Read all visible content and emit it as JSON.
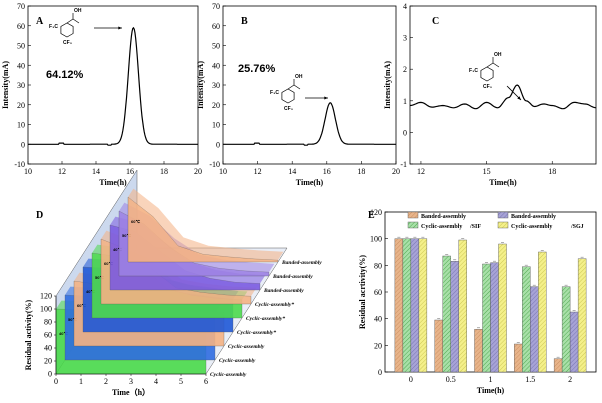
{
  "chart_data": [
    {
      "type": "line",
      "panel": "A",
      "xlabel": "Time(h)",
      "ylabel": "Intensity(mA)",
      "xlim": [
        10,
        20
      ],
      "ylim": [
        -10,
        70
      ],
      "xticks": [
        "10",
        "12",
        "14",
        "16",
        "18",
        "20"
      ],
      "yticks": [
        "-10",
        "0",
        "10",
        "20",
        "30",
        "40",
        "50",
        "60",
        "70"
      ],
      "annotation": "64.12%",
      "mol_labels": [
        "OH",
        "F₃C",
        "CF₃"
      ],
      "peak": {
        "center": 16.2,
        "height": 59,
        "width": 0.3
      },
      "baseline": 0
    },
    {
      "type": "line",
      "panel": "B",
      "xlabel": "Time(h)",
      "ylabel": "Intensity(mA)",
      "xlim": [
        10,
        20
      ],
      "ylim": [
        -10,
        70
      ],
      "xticks": [
        "10",
        "12",
        "14",
        "16",
        "18",
        "20"
      ],
      "yticks": [
        "-10",
        "0",
        "10",
        "20",
        "30",
        "40",
        "50",
        "60",
        "70"
      ],
      "annotation": "25.76%",
      "mol_labels": [
        "OH",
        "F₃C",
        "CF₃"
      ],
      "peak": {
        "center": 16.2,
        "height": 21,
        "width": 0.3
      },
      "baseline": 0
    },
    {
      "type": "line",
      "panel": "C",
      "xlabel": "Time(h)",
      "ylabel": "Intensity(mA)",
      "xlim": [
        11.5,
        20
      ],
      "ylim": [
        -1,
        4
      ],
      "xticks": [
        "12",
        "15",
        "18"
      ],
      "yticks": [
        "-1",
        "0",
        "1",
        "2",
        "3",
        "4"
      ],
      "mol_labels": [
        "OH",
        "F₃C",
        "CF₃"
      ],
      "x": [
        11.5,
        12.0,
        12.5,
        13.0,
        13.5,
        14.0,
        14.5,
        15.0,
        15.5,
        16.0,
        16.4,
        16.8,
        17.2,
        17.6,
        18.0,
        18.5,
        19.0,
        19.5,
        20.0
      ],
      "y": [
        0.85,
        0.95,
        0.8,
        0.85,
        0.78,
        0.9,
        0.75,
        0.95,
        0.78,
        1.1,
        1.5,
        1.0,
        0.82,
        0.9,
        0.85,
        0.75,
        0.95,
        0.9,
        0.78
      ]
    },
    {
      "type": "area",
      "panel": "D",
      "xlabel": "Time（h）",
      "ylabel": "Residual activity(%)",
      "xlim": [
        0,
        6
      ],
      "ylim": [
        0,
        120
      ],
      "xticks": [
        "0",
        "1",
        "2",
        "3",
        "4",
        "5",
        "6"
      ],
      "yticks": [
        "0",
        "20",
        "40",
        "60",
        "80",
        "100",
        "120"
      ],
      "x": [
        0,
        1,
        2,
        3,
        4,
        5,
        6
      ],
      "series": [
        {
          "name": "Banded-assembly",
          "temp": "60℃",
          "color": "#f4b183",
          "values": [
            100,
            70,
            25,
            12,
            8,
            5,
            3
          ]
        },
        {
          "name": "Banded-assembly",
          "temp": "50℃",
          "color": "#9b7fe3",
          "values": [
            100,
            80,
            45,
            20,
            12,
            8,
            6
          ]
        },
        {
          "name": "Banded-assembly",
          "temp": "40℃",
          "color": "#7a5ae0",
          "values": [
            100,
            90,
            60,
            30,
            18,
            12,
            10
          ]
        },
        {
          "name": "Cyclic-assembly*",
          "temp": "60℃",
          "color": "#f4b183",
          "values": [
            100,
            85,
            55,
            25,
            18,
            14,
            12
          ]
        },
        {
          "name": "Cyclic-assembly*",
          "temp": "50℃",
          "color": "#4cd94c",
          "values": [
            100,
            95,
            80,
            45,
            35,
            30,
            28
          ]
        },
        {
          "name": "Cyclic-assembly*",
          "temp": "40℃",
          "color": "#1f58d6",
          "values": [
            100,
            98,
            90,
            70,
            60,
            55,
            50
          ]
        },
        {
          "name": "Cyclic-assembly",
          "temp": "60℃",
          "color": "#f4b183",
          "values": [
            100,
            95,
            85,
            70,
            60,
            55,
            52
          ]
        },
        {
          "name": "Cyclic-assembly",
          "temp": "50℃",
          "color": "#2f6ce0",
          "values": [
            100,
            98,
            92,
            85,
            80,
            75,
            72
          ]
        },
        {
          "name": "Cyclic-assembly",
          "temp": "40℃",
          "color": "#49d949",
          "values": [
            100,
            99,
            96,
            92,
            90,
            88,
            86
          ]
        }
      ]
    },
    {
      "type": "bar",
      "panel": "E",
      "xlabel": "Time(h)",
      "ylabel": "Residual acrtivity(%)",
      "categories": [
        "0",
        "0.5",
        "1",
        "1.5",
        "2"
      ],
      "ylim": [
        0,
        120
      ],
      "yticks": [
        "0",
        "20",
        "40",
        "60",
        "80",
        "100",
        "120"
      ],
      "legend_suffix_1": "/SIF",
      "legend_suffix_2": "/SGJ",
      "series": [
        {
          "name": "Banded-assembly",
          "group": "SIF",
          "color": "#e8b48a",
          "values": [
            100,
            39,
            32,
            21,
            10
          ]
        },
        {
          "name": "Cyclic-assembly",
          "group": "SIF",
          "color": "#a8e0a8",
          "values": [
            100,
            87,
            81,
            79,
            64
          ]
        },
        {
          "name": "Banded-assembly",
          "group": "SGJ",
          "color": "#a7a3d6",
          "values": [
            100,
            83,
            82,
            64,
            45
          ]
        },
        {
          "name": "Cyclic-assembly",
          "group": "SGJ",
          "color": "#f4f08a",
          "values": [
            100,
            99,
            96,
            90,
            85
          ]
        }
      ]
    }
  ]
}
